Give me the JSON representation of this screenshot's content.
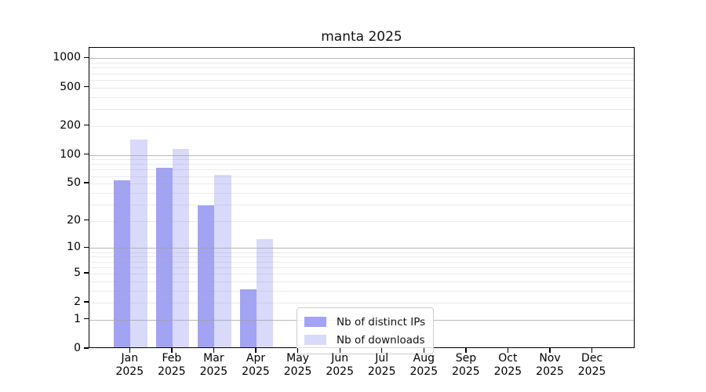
{
  "chart_data": {
    "type": "bar",
    "title": "manta 2025",
    "year": "2025",
    "categories": [
      "Jan",
      "Feb",
      "Mar",
      "Apr",
      "May",
      "Jun",
      "Jul",
      "Aug",
      "Sep",
      "Oct",
      "Nov",
      "Dec"
    ],
    "series": [
      {
        "name": "Nb of distinct IPs",
        "color": "#a3a3f3",
        "values": [
          52,
          71,
          28,
          3,
          0,
          0,
          0,
          0,
          0,
          0,
          0,
          0
        ]
      },
      {
        "name": "Nb of downloads",
        "color": "#d9d9fa",
        "values": [
          140,
          110,
          60,
          12,
          0,
          0,
          0,
          0,
          0,
          0,
          0,
          0
        ]
      }
    ],
    "yscale": "log1p",
    "yticks": [
      0,
      1,
      2,
      5,
      10,
      20,
      50,
      100,
      200,
      500,
      1000
    ],
    "ylim": [
      0,
      1300
    ],
    "grid": "both",
    "grid_major_at": [
      1,
      10,
      100,
      1000
    ],
    "legend_position": "lower center",
    "colors": {
      "bar_distinct_ips": "#a3a3f3",
      "bar_downloads": "#d9d9fa",
      "grid_major": "#a0a0a0",
      "grid_minor": "#e6e6e6",
      "spine": "#000000",
      "background": "#ffffff"
    }
  }
}
